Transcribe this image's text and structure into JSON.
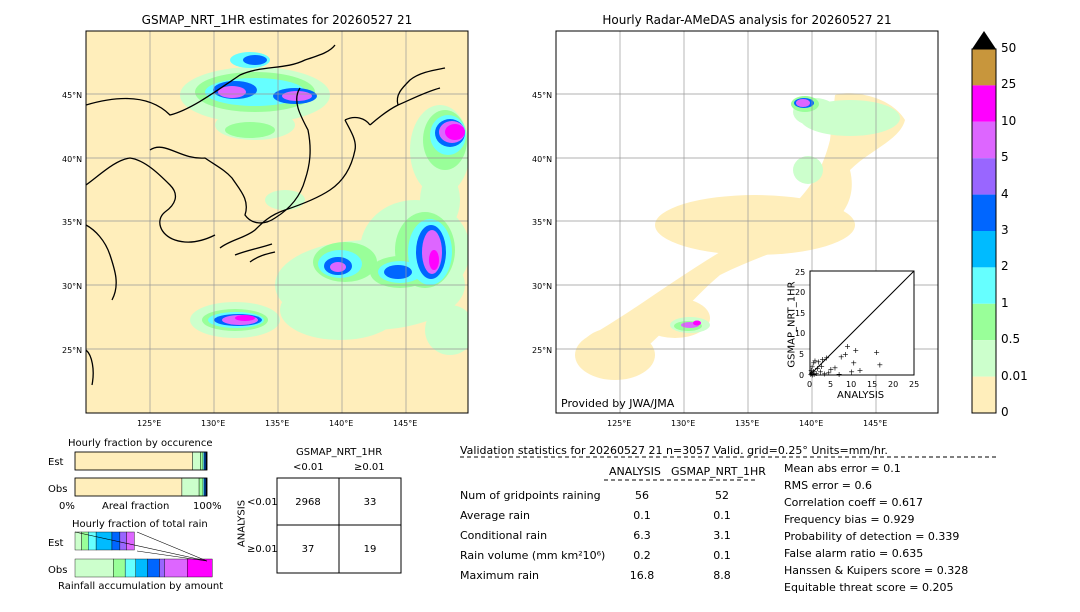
{
  "left_map": {
    "title": "GSMAP_NRT_1HR estimates for 20260527 21",
    "lon_ticks": [
      "125°E",
      "130°E",
      "135°E",
      "140°E",
      "145°E"
    ],
    "lat_ticks": [
      "45°N",
      "40°N",
      "35°N",
      "30°N",
      "25°N"
    ]
  },
  "right_map": {
    "title": "Hourly Radar-AMeDAS analysis for 20260527 21",
    "lon_ticks": [
      "125°E",
      "130°E",
      "135°E",
      "140°E",
      "145°E"
    ],
    "lat_ticks": [
      "45°N",
      "40°N",
      "35°N",
      "30°N",
      "25°N"
    ],
    "credit": "Provided by JWA/JMA"
  },
  "colorbar": {
    "labels": [
      "50",
      "25",
      "10",
      "5",
      "4",
      "3",
      "2",
      "1",
      "0.5",
      "0.01",
      "0"
    ],
    "colors": [
      "#c8963c",
      "#ff00ff",
      "#dd66ff",
      "#9966ff",
      "#0066ff",
      "#00bbff",
      "#66ffff",
      "#99ff99",
      "#ccffcc",
      "#ffeebb"
    ]
  },
  "chart_data": [
    {
      "type": "scatter",
      "title": "",
      "xlabel": "ANALYSIS",
      "ylabel": "GSMAP_NRT_1HR",
      "xlim": [
        0,
        25
      ],
      "ylim": [
        0,
        25
      ],
      "x_ticks": [
        "0",
        "5",
        "10",
        "15",
        "20",
        "25"
      ],
      "y_ticks": [
        "0",
        "5",
        "10",
        "15",
        "20",
        "25"
      ],
      "points": [
        {
          "x": 0.2,
          "y": 0.2
        },
        {
          "x": 0.4,
          "y": 0.5
        },
        {
          "x": 0.6,
          "y": 0.1
        },
        {
          "x": 0.8,
          "y": 1.0
        },
        {
          "x": 1.0,
          "y": 0.3
        },
        {
          "x": 0.3,
          "y": 1.2
        },
        {
          "x": 1.5,
          "y": 0.5
        },
        {
          "x": 0.5,
          "y": 2.0
        },
        {
          "x": 0.9,
          "y": 3.0
        },
        {
          "x": 1.2,
          "y": 3.5
        },
        {
          "x": 2.0,
          "y": 3.2
        },
        {
          "x": 2.5,
          "y": 0.8
        },
        {
          "x": 3.0,
          "y": 3.8
        },
        {
          "x": 3.5,
          "y": 0.4
        },
        {
          "x": 4.0,
          "y": 4.2
        },
        {
          "x": 4.5,
          "y": 0.6
        },
        {
          "x": 5.0,
          "y": 1.5
        },
        {
          "x": 6.0,
          "y": 1.8
        },
        {
          "x": 7.5,
          "y": 4.5
        },
        {
          "x": 8.5,
          "y": 5.0
        },
        {
          "x": 9.0,
          "y": 7.0
        },
        {
          "x": 10.0,
          "y": 0.8
        },
        {
          "x": 10.5,
          "y": 3.0
        },
        {
          "x": 11.0,
          "y": 6.0
        },
        {
          "x": 12.0,
          "y": 1.2
        },
        {
          "x": 16.0,
          "y": 5.5
        },
        {
          "x": 16.8,
          "y": 2.5
        },
        {
          "x": 7.0,
          "y": 0.3
        },
        {
          "x": 2.8,
          "y": 2.2
        },
        {
          "x": 1.8,
          "y": 1.7
        }
      ]
    },
    {
      "type": "bar",
      "title": "Hourly fraction by occurence",
      "categories": [
        "Est",
        "Obs"
      ],
      "xlabel": "Areal fraction",
      "x_ticks": [
        "0%",
        "100%"
      ],
      "series": [
        {
          "segments": [
            {
              "value": 0.89,
              "color": "#ffeebb"
            },
            {
              "value": 0.06,
              "color": "#ccffcc"
            },
            {
              "value": 0.02,
              "color": "#99ff99"
            },
            {
              "value": 0.01,
              "color": "#66ffff"
            },
            {
              "value": 0.01,
              "color": "#0066ff"
            },
            {
              "value": 0.01,
              "color": "#000000"
            }
          ]
        },
        {
          "segments": [
            {
              "value": 0.81,
              "color": "#ffeebb"
            },
            {
              "value": 0.13,
              "color": "#ccffcc"
            },
            {
              "value": 0.03,
              "color": "#99ff99"
            },
            {
              "value": 0.01,
              "color": "#66ffff"
            },
            {
              "value": 0.01,
              "color": "#0066ff"
            },
            {
              "value": 0.01,
              "color": "#000000"
            }
          ]
        }
      ]
    },
    {
      "type": "bar",
      "title": "Hourly fraction of total rain",
      "categories": [
        "Est",
        "Obs"
      ],
      "xlabel": "Rainfall accumulation by amount",
      "series": [
        {
          "segments": [
            {
              "value": 0.05,
              "color": "#ccffcc"
            },
            {
              "value": 0.05,
              "color": "#99ff99"
            },
            {
              "value": 0.06,
              "color": "#66ffff"
            },
            {
              "value": 0.12,
              "color": "#00bbff"
            },
            {
              "value": 0.06,
              "color": "#0066ff"
            },
            {
              "value": 0.05,
              "color": "#9966ff"
            },
            {
              "value": 0.06,
              "color": "#dd66ff"
            }
          ]
        },
        {
          "segments": [
            {
              "value": 0.29,
              "color": "#ccffcc"
            },
            {
              "value": 0.09,
              "color": "#99ff99"
            },
            {
              "value": 0.08,
              "color": "#66ffff"
            },
            {
              "value": 0.09,
              "color": "#00bbff"
            },
            {
              "value": 0.09,
              "color": "#0066ff"
            },
            {
              "value": 0.04,
              "color": "#9966ff"
            },
            {
              "value": 0.17,
              "color": "#dd66ff"
            },
            {
              "value": 0.19,
              "color": "#ff00ff"
            }
          ]
        }
      ]
    },
    {
      "type": "table",
      "title": "GSMAP_NRT_1HR",
      "col_headers": [
        "<0.01",
        "≥0.01"
      ],
      "row_axis_label": "ANALYSIS",
      "row_headers": [
        "<0.01",
        "≥0.01"
      ],
      "cells": [
        [
          "2968",
          "33"
        ],
        [
          "37",
          "19"
        ]
      ]
    }
  ],
  "validation": {
    "header": "Validation statistics for 20260527 21  n=3057 Valid. grid=0.25° Units=mm/hr.",
    "col_analysis": "ANALYSIS",
    "col_gsmap": "GSMAP_NRT_1HR",
    "rows": [
      {
        "label": "Num of gridpoints raining",
        "analysis": "56",
        "gsmap": "52"
      },
      {
        "label": "Average rain",
        "analysis": "0.1",
        "gsmap": "0.1"
      },
      {
        "label": "Conditional rain",
        "analysis": "6.3",
        "gsmap": "3.1"
      },
      {
        "label": "Rain volume (mm km²10⁶)",
        "analysis": "0.2",
        "gsmap": "0.1"
      },
      {
        "label": "Maximum rain",
        "analysis": "16.8",
        "gsmap": "8.8"
      }
    ],
    "scores": [
      "Mean abs error =    0.1",
      "RMS error =    0.6",
      "Correlation coeff =  0.617",
      "Frequency bias =  0.929",
      "Probability of detection =  0.339",
      "False alarm ratio =  0.635",
      "Hanssen & Kuipers score =  0.328",
      "Equitable threat score =  0.205"
    ]
  }
}
